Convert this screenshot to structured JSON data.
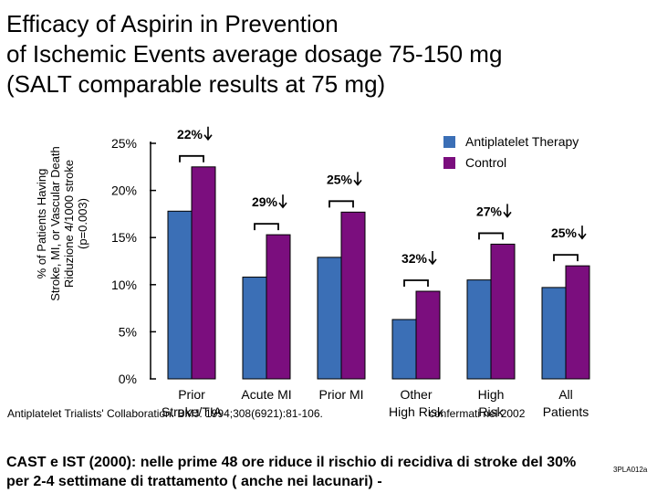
{
  "title": {
    "line1": "Efficacy of Aspirin in Prevention",
    "line2": "of  Ischemic Events average dosage 75-150 mg",
    "line3": "(SALT comparable results at 75 mg)"
  },
  "y_axis_label": {
    "line1": "% of Patients Having",
    "line2": "Stroke, MI, or Vascular Death",
    "line3": "Riduzione 4/1000 stroke",
    "line4": "(p=0.003)"
  },
  "chart_data": {
    "type": "bar",
    "title": "Efficacy of Aspirin in Prevention of Ischemic Events average dosage 75-150 mg (SALT comparable results at 75 mg)",
    "ylabel": "% of Patients Having Stroke, MI, or Vascular Death",
    "ylim": [
      0,
      25
    ],
    "yticks": [
      "0%",
      "5%",
      "10%",
      "15%",
      "20%",
      "25%"
    ],
    "ytick_values": [
      0,
      5,
      10,
      15,
      20,
      25
    ],
    "categories": [
      {
        "line1": "Prior",
        "line2": "Stroke/TIA"
      },
      {
        "line1": "Acute MI",
        "line2": ""
      },
      {
        "line1": "Prior MI",
        "line2": ""
      },
      {
        "line1": "Other",
        "line2": "High Risk"
      },
      {
        "line1": "High",
        "line2": "Risk"
      },
      {
        "line1": "All",
        "line2": "Patients"
      }
    ],
    "series": [
      {
        "name": "Antiplatelet Therapy",
        "color": "#3b6fb6",
        "values": [
          17.8,
          10.8,
          12.9,
          6.3,
          10.5,
          9.7
        ]
      },
      {
        "name": "Control",
        "color": "#7b0e7e",
        "values": [
          22.5,
          15.3,
          17.7,
          9.3,
          14.3,
          12.0
        ]
      }
    ],
    "reductions": [
      "22%",
      "29%",
      "25%",
      "32%",
      "27%",
      "25%"
    ],
    "legend_position": "top-right"
  },
  "footer": {
    "source": "Antiplatelet Trialists' Collaboration. BMJ. 1994;308(6921):81-106.",
    "confirmed": "confermati nel 2002",
    "note_line1": "CAST e IST (2000): nelle prime 48 ore riduce il rischio di recidiva di stroke del 30%",
    "note_line2": "per 2-4 settimane di trattamento ( anche nei lacunari) -",
    "slide_code": "3PLA012a"
  }
}
